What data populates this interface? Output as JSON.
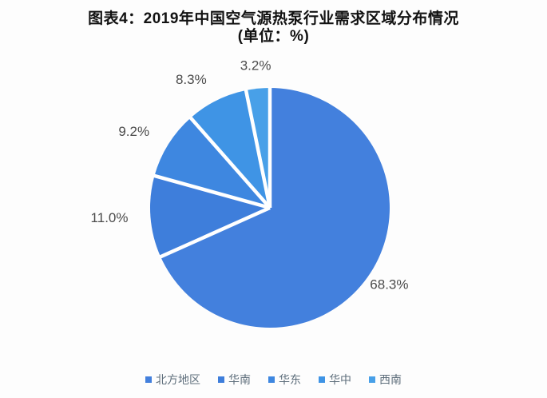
{
  "chart_data": {
    "type": "pie",
    "title": "图表4：2019年中国空气源热泵行业需求区域分布情况",
    "subtitle": "(单位：%)",
    "unit": "%",
    "categories": [
      "北方地区",
      "华南",
      "华东",
      "华中",
      "西南"
    ],
    "values": [
      68.3,
      11.0,
      9.2,
      8.3,
      3.2
    ],
    "labels": [
      "68.3%",
      "11.0%",
      "9.2%",
      "8.3%",
      "3.2%"
    ],
    "colors": [
      "#4380dd",
      "#3e7edb",
      "#3e87e0",
      "#3f94e5",
      "#48a0e8"
    ],
    "start_angle_deg": 0,
    "direction": "clockwise",
    "legend_position": "bottom",
    "divider_color": "#ffffff",
    "label_color": "#4b4b4b",
    "background": "#fdfdfd"
  }
}
